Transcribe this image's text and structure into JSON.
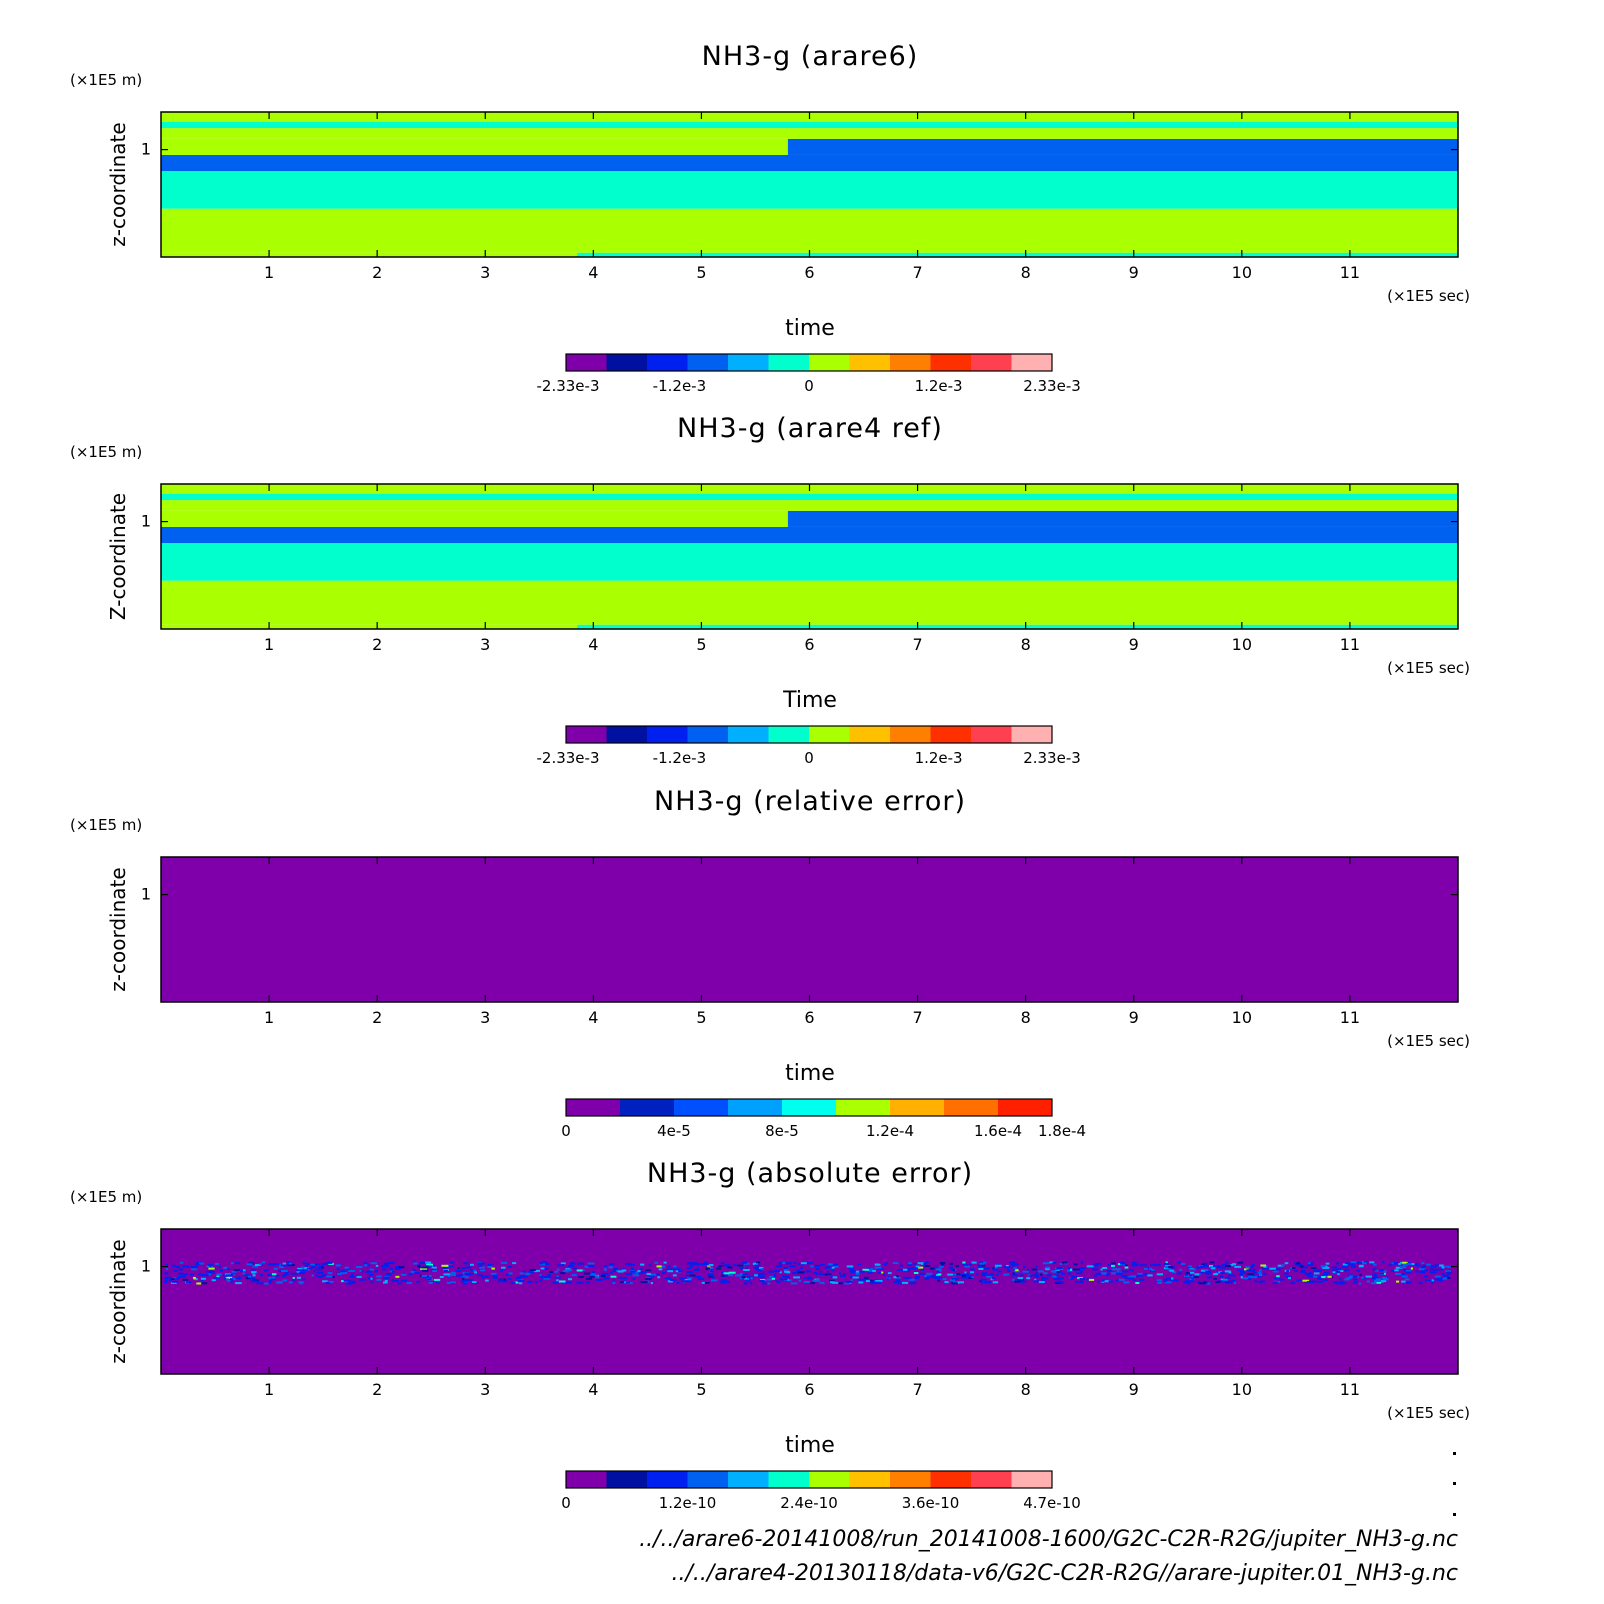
{
  "figure": {
    "sources": [
      "../../arare6-20141008/run_20141008-1600/G2C-C2R-R2G/jupiter_NH3-g.nc",
      "../../arare4-20130118/data-v6/G2C-C2R-R2G//arare-jupiter.01_NH3-g.nc"
    ]
  },
  "chart_data": [
    {
      "type": "heatmap",
      "title": "NH3-g (arare6)",
      "xlabel": "time",
      "ylabel": "z-coordinate",
      "x_unit": "(×1E5 sec)",
      "y_unit": "(×1E5 m)",
      "xlim": [
        0,
        12
      ],
      "ylim": [
        0,
        1.35
      ],
      "xticks": [
        "1",
        "2",
        "3",
        "4",
        "5",
        "6",
        "7",
        "8",
        "9",
        "10",
        "11"
      ],
      "yticks": [
        "1"
      ],
      "colorbar": {
        "colors": [
          "#7f00aa",
          "#0010a0",
          "#0020f0",
          "#0060f0",
          "#00b0ff",
          "#00ffcc",
          "#aaff00",
          "#ffc000",
          "#ff8000",
          "#ff3000",
          "#ff4050",
          "#ffb0b0"
        ],
        "labels": [
          "-2.33e-3",
          "-1.2e-3",
          "0",
          "1.2e-3",
          "2.33e-3"
        ]
      },
      "bands": [
        {
          "z": [
            0.0,
            0.04
          ],
          "value": 0.0003,
          "until_x": 3.85,
          "then": -0.0003
        },
        {
          "z": [
            0.04,
            0.45
          ],
          "value": 0.0003
        },
        {
          "z": [
            0.45,
            0.8
          ],
          "value": -0.0003
        },
        {
          "z": [
            0.8,
            0.95
          ],
          "value": -0.0008
        },
        {
          "z": [
            0.95,
            1.1
          ],
          "value": 0.0003,
          "until_x": 5.8,
          "then": -0.0008
        },
        {
          "z": [
            1.1,
            1.2
          ],
          "value": 0.0003
        },
        {
          "z": [
            1.2,
            1.26
          ],
          "value": -0.0003
        },
        {
          "z": [
            1.26,
            1.35
          ],
          "value": 0.0003
        }
      ]
    },
    {
      "type": "heatmap",
      "title": "NH3-g (arare4 ref)",
      "xlabel": "Time",
      "ylabel": "Z-coordinate",
      "x_unit": "(×1E5 sec)",
      "y_unit": "(×1E5 m)",
      "xlim": [
        0,
        12
      ],
      "ylim": [
        0,
        1.35
      ],
      "xticks": [
        "1",
        "2",
        "3",
        "4",
        "5",
        "6",
        "7",
        "8",
        "9",
        "10",
        "11"
      ],
      "yticks": [
        "1"
      ],
      "colorbar": {
        "colors": [
          "#7f00aa",
          "#0010a0",
          "#0020f0",
          "#0060f0",
          "#00b0ff",
          "#00ffcc",
          "#aaff00",
          "#ffc000",
          "#ff8000",
          "#ff3000",
          "#ff4050",
          "#ffb0b0"
        ],
        "labels": [
          "-2.33e-3",
          "-1.2e-3",
          "0",
          "1.2e-3",
          "2.33e-3"
        ]
      },
      "bands": [
        {
          "z": [
            0.0,
            0.04
          ],
          "value": 0.0003,
          "until_x": 3.85,
          "then": -0.0003
        },
        {
          "z": [
            0.04,
            0.45
          ],
          "value": 0.0003
        },
        {
          "z": [
            0.45,
            0.8
          ],
          "value": -0.0003
        },
        {
          "z": [
            0.8,
            0.95
          ],
          "value": -0.0008
        },
        {
          "z": [
            0.95,
            1.1
          ],
          "value": 0.0003,
          "until_x": 5.8,
          "then": -0.0008
        },
        {
          "z": [
            1.1,
            1.2
          ],
          "value": 0.0003
        },
        {
          "z": [
            1.2,
            1.26
          ],
          "value": -0.0003
        },
        {
          "z": [
            1.26,
            1.35
          ],
          "value": 0.0003
        }
      ]
    },
    {
      "type": "heatmap",
      "title": "NH3-g (relative error)",
      "xlabel": "time",
      "ylabel": "z-coordinate",
      "x_unit": "(×1E5 sec)",
      "y_unit": "(×1E5 m)",
      "xlim": [
        0,
        12
      ],
      "ylim": [
        0,
        1.35
      ],
      "xticks": [
        "1",
        "2",
        "3",
        "4",
        "5",
        "6",
        "7",
        "8",
        "9",
        "10",
        "11"
      ],
      "yticks": [
        "1"
      ],
      "colorbar": {
        "colors": [
          "#7f00aa",
          "#0020c0",
          "#0050ff",
          "#00a0ff",
          "#00ffee",
          "#aaff00",
          "#ffb000",
          "#ff7000",
          "#ff2000"
        ],
        "labels": [
          "0",
          "4e-5",
          "8e-5",
          "1.2e-4",
          "1.6e-4",
          "1.8e-4"
        ]
      },
      "bands": [
        {
          "z": [
            0.0,
            1.35
          ],
          "value": 0
        }
      ]
    },
    {
      "type": "heatmap",
      "title": "NH3-g (absolute error)",
      "xlabel": "time",
      "ylabel": "z-coordinate",
      "x_unit": "(×1E5 sec)",
      "y_unit": "(×1E5 m)",
      "xlim": [
        0,
        12
      ],
      "ylim": [
        0,
        1.35
      ],
      "xticks": [
        "1",
        "2",
        "3",
        "4",
        "5",
        "6",
        "7",
        "8",
        "9",
        "10",
        "11"
      ],
      "yticks": [
        "1"
      ],
      "colorbar": {
        "colors": [
          "#7f00aa",
          "#0010a0",
          "#0020f0",
          "#0060f0",
          "#00b0ff",
          "#00ffcc",
          "#aaff00",
          "#ffc000",
          "#ff8000",
          "#ff3000",
          "#ff4050",
          "#ffb0b0"
        ],
        "labels": [
          "0",
          "1.2e-10",
          "2.4e-10",
          "3.6e-10",
          "4.7e-10"
        ]
      },
      "bands": [
        {
          "z": [
            0.0,
            1.35
          ],
          "value": 0
        }
      ],
      "noise_band_z": [
        0.85,
        1.05
      ]
    }
  ]
}
